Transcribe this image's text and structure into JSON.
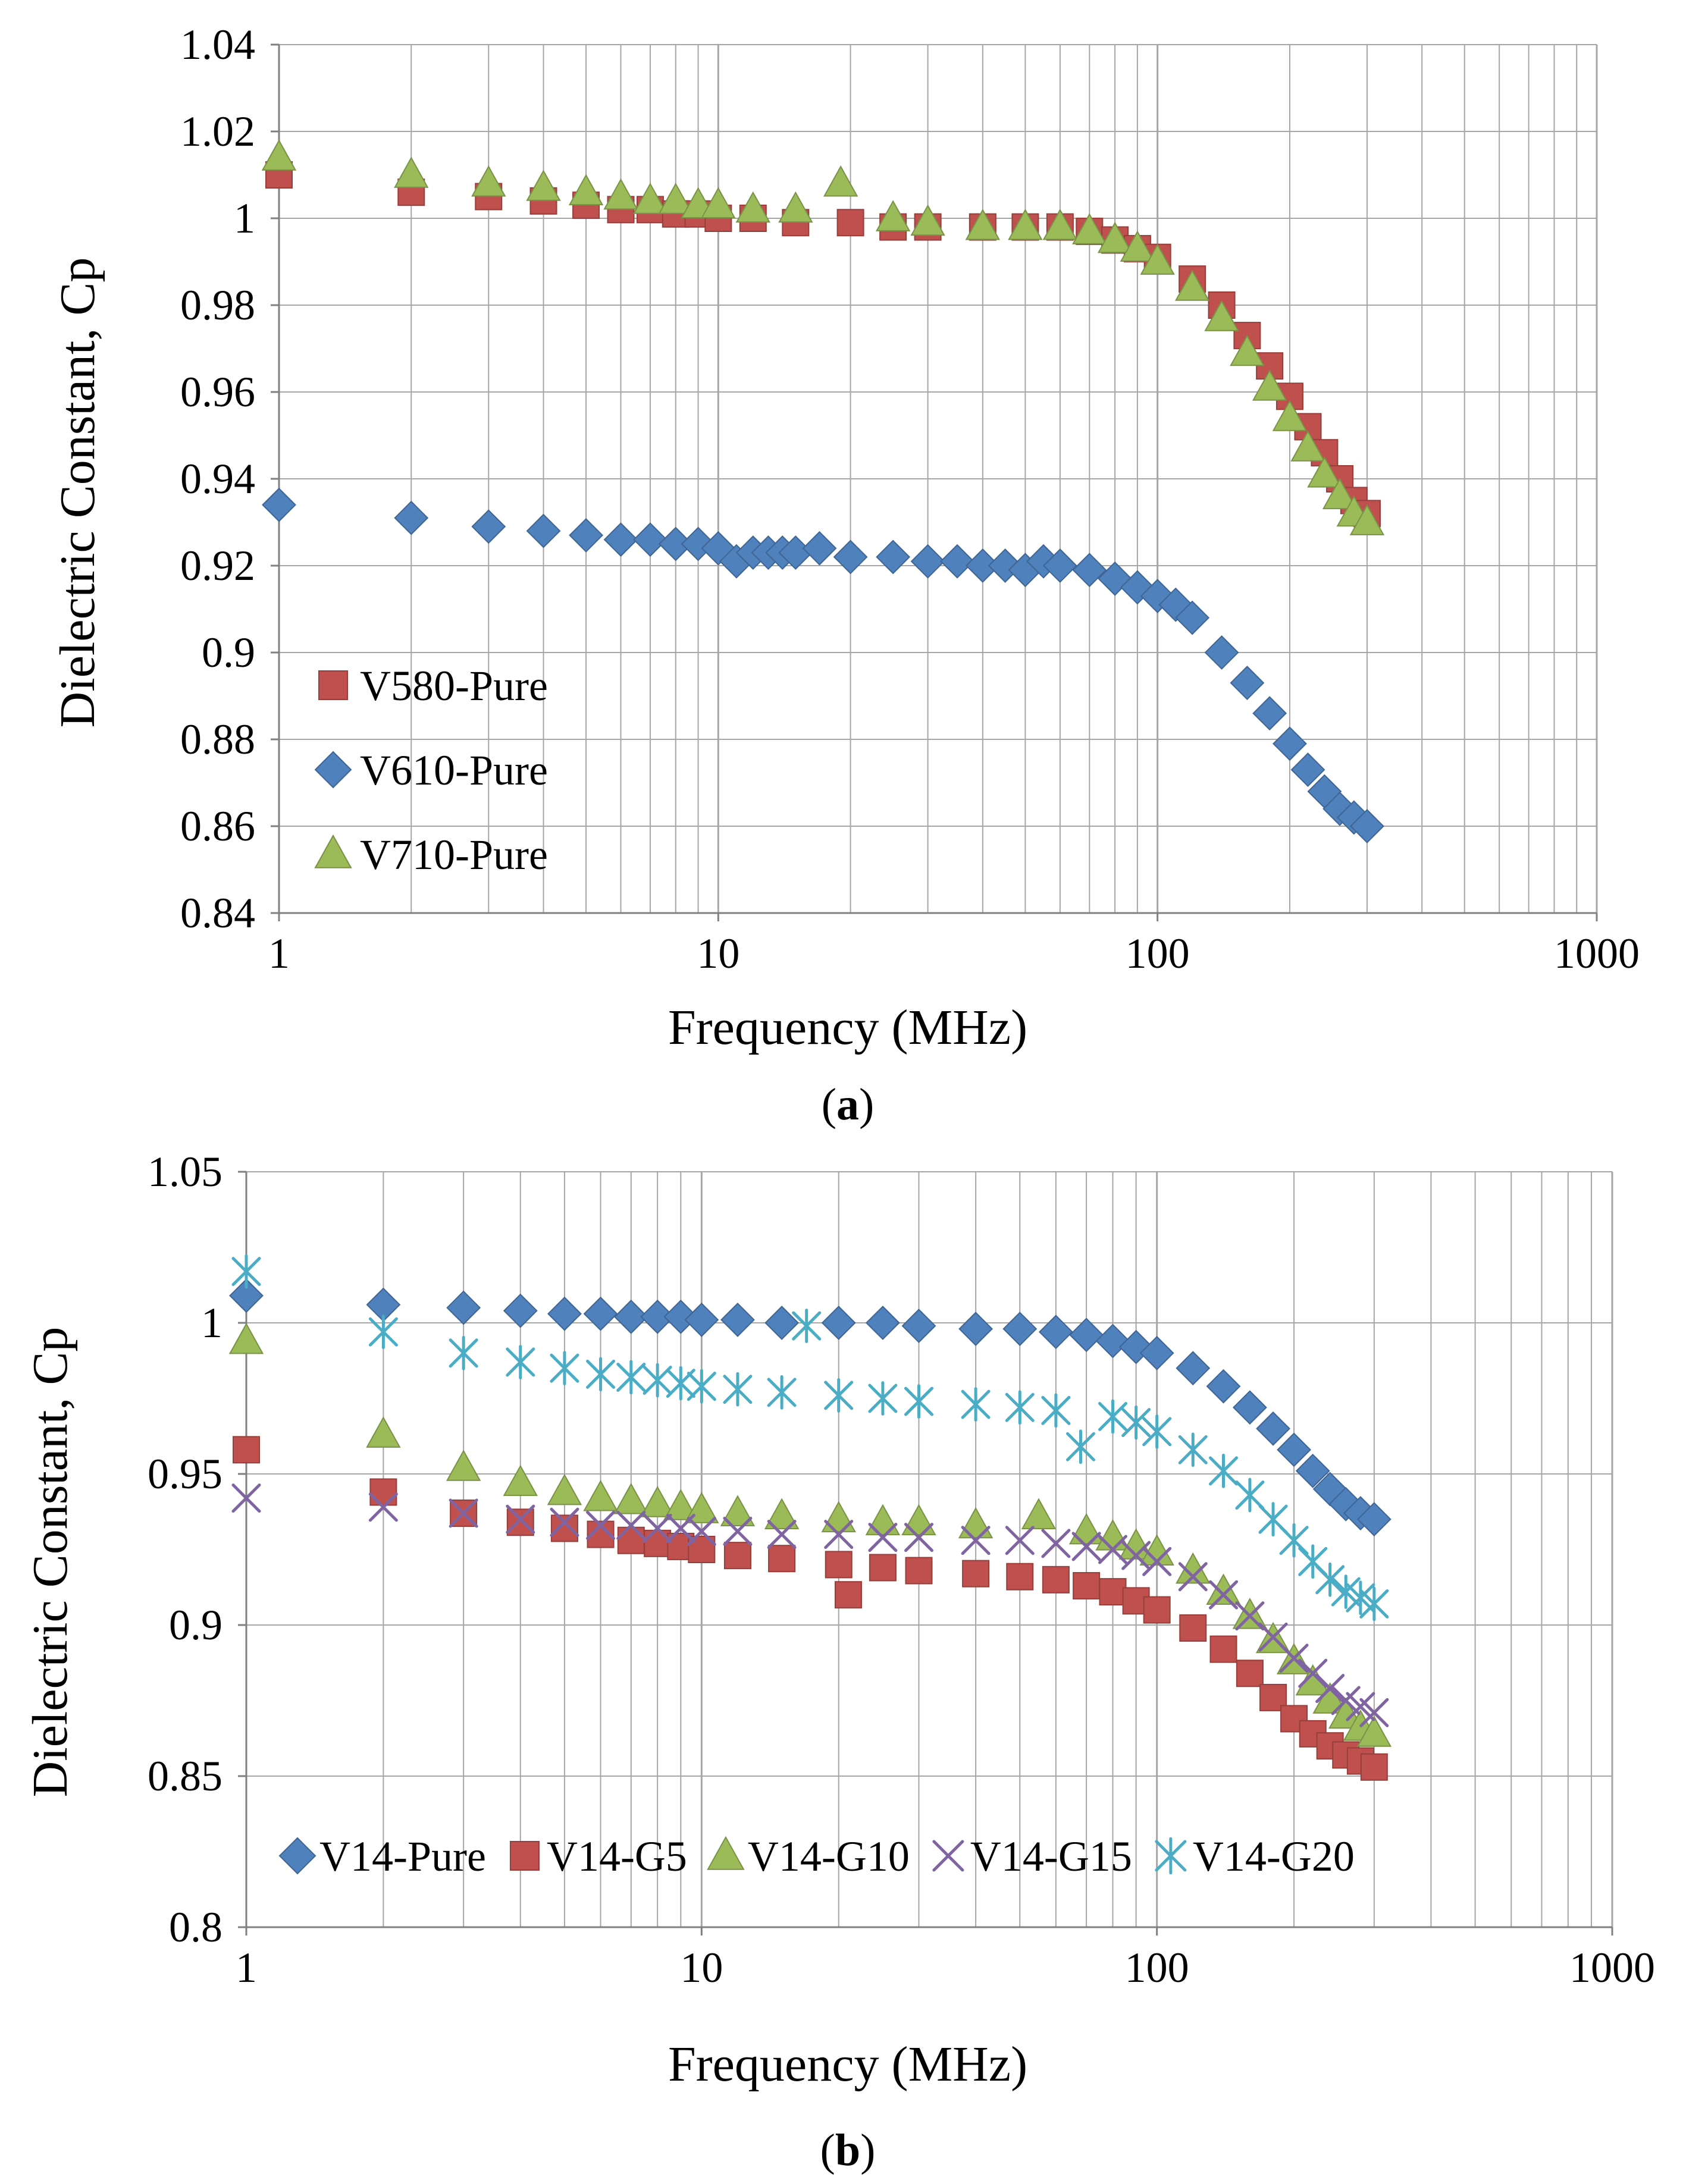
{
  "chart_data": [
    {
      "type": "scatter",
      "panel_label": "(a)",
      "panel_letter": "a",
      "xlabel": "Frequency (MHz)",
      "ylabel": "Dielectric Constant, Cp",
      "xscale": "log",
      "xlim": [
        1,
        1000
      ],
      "ylim": [
        0.84,
        1.04
      ],
      "ystep": 0.02,
      "ydecimals": 2,
      "xticks": [
        "1",
        "10",
        "100",
        "1000"
      ],
      "yticks": [
        "0.84",
        "0.86",
        "0.88",
        "0.9",
        "0.92",
        "0.94",
        "0.96",
        "0.98",
        "1",
        "1.02",
        "1.04"
      ],
      "grid": true,
      "legend": "bottom-left",
      "series": [
        {
          "name": "V580-Pure",
          "marker": "square",
          "color": "#C0504D",
          "x": [
            1,
            2,
            3,
            4,
            5,
            6,
            7,
            8,
            9,
            10,
            12,
            15,
            20,
            25,
            30,
            40,
            50,
            60,
            70,
            80,
            90,
            100,
            120,
            140,
            160,
            180,
            200,
            220,
            240,
            260,
            280,
            300
          ],
          "y": [
            1.01,
            1.006,
            1.005,
            1.004,
            1.003,
            1.002,
            1.002,
            1.001,
            1.001,
            1.0,
            1.0,
            0.999,
            0.999,
            0.998,
            0.998,
            0.998,
            0.998,
            0.998,
            0.997,
            0.995,
            0.993,
            0.991,
            0.986,
            0.98,
            0.973,
            0.966,
            0.959,
            0.952,
            0.946,
            0.94,
            0.935,
            0.932
          ]
        },
        {
          "name": "V610-Pure",
          "marker": "diamond",
          "color": "#4F81BD",
          "x": [
            1,
            2,
            3,
            4,
            5,
            6,
            7,
            8,
            9,
            10,
            11,
            12,
            13,
            14,
            15,
            17,
            20,
            25,
            30,
            35,
            40,
            45,
            50,
            55,
            60,
            70,
            80,
            90,
            100,
            110,
            120,
            140,
            160,
            180,
            200,
            220,
            240,
            260,
            280,
            300
          ],
          "y": [
            0.934,
            0.931,
            0.929,
            0.928,
            0.927,
            0.926,
            0.926,
            0.925,
            0.925,
            0.924,
            0.921,
            0.923,
            0.923,
            0.923,
            0.923,
            0.924,
            0.922,
            0.922,
            0.921,
            0.921,
            0.92,
            0.92,
            0.919,
            0.921,
            0.92,
            0.919,
            0.917,
            0.915,
            0.913,
            0.911,
            0.908,
            0.9,
            0.893,
            0.886,
            0.879,
            0.873,
            0.868,
            0.864,
            0.862,
            0.86
          ]
        },
        {
          "name": "V710-Pure",
          "marker": "triangle",
          "color": "#9BBB59",
          "x": [
            1,
            2,
            3,
            4,
            5,
            6,
            7,
            8,
            9,
            10,
            12,
            15,
            19,
            25,
            30,
            40,
            50,
            60,
            70,
            80,
            90,
            100,
            120,
            140,
            160,
            180,
            200,
            220,
            240,
            260,
            280,
            300
          ],
          "y": [
            1.014,
            1.01,
            1.008,
            1.007,
            1.006,
            1.005,
            1.004,
            1.004,
            1.003,
            1.003,
            1.002,
            1.002,
            1.008,
            1.0,
            0.999,
            0.998,
            0.998,
            0.998,
            0.997,
            0.995,
            0.993,
            0.99,
            0.984,
            0.977,
            0.969,
            0.961,
            0.954,
            0.947,
            0.941,
            0.936,
            0.932,
            0.93
          ]
        }
      ]
    },
    {
      "type": "scatter",
      "panel_label": "(b)",
      "panel_letter": "b",
      "xlabel": "Frequency (MHz)",
      "ylabel": "Dielectric Constant, Cp",
      "xscale": "log",
      "xlim": [
        1,
        1000
      ],
      "ylim": [
        0.8,
        1.05
      ],
      "ystep": 0.05,
      "ydecimals": 2,
      "xticks": [
        "1",
        "10",
        "100",
        "1000"
      ],
      "yticks": [
        "0.8",
        "0.85",
        "0.9",
        "0.95",
        "1",
        "1.05"
      ],
      "grid": true,
      "legend": "bottom",
      "series": [
        {
          "name": "V14-Pure",
          "marker": "diamond",
          "color": "#4F81BD",
          "x": [
            1,
            2,
            3,
            4,
            5,
            6,
            7,
            8,
            9,
            10,
            12,
            15,
            20,
            25,
            30,
            40,
            50,
            60,
            70,
            80,
            90,
            100,
            120,
            140,
            160,
            180,
            200,
            220,
            240,
            260,
            280,
            300
          ],
          "y": [
            1.009,
            1.006,
            1.005,
            1.004,
            1.003,
            1.003,
            1.002,
            1.002,
            1.002,
            1.001,
            1.001,
            1.0,
            1.0,
            1.0,
            0.999,
            0.998,
            0.998,
            0.997,
            0.996,
            0.994,
            0.992,
            0.99,
            0.985,
            0.979,
            0.972,
            0.965,
            0.958,
            0.951,
            0.945,
            0.94,
            0.937,
            0.935
          ]
        },
        {
          "name": "V14-G5",
          "marker": "square",
          "color": "#C0504D",
          "x": [
            1,
            2,
            3,
            4,
            5,
            6,
            7,
            8,
            9,
            10,
            12,
            15,
            20,
            21,
            25,
            30,
            40,
            50,
            60,
            70,
            80,
            90,
            100,
            120,
            140,
            160,
            180,
            200,
            220,
            240,
            260,
            280,
            300
          ],
          "y": [
            0.958,
            0.944,
            0.937,
            0.934,
            0.932,
            0.93,
            0.928,
            0.927,
            0.926,
            0.925,
            0.923,
            0.922,
            0.92,
            0.91,
            0.919,
            0.918,
            0.917,
            0.916,
            0.915,
            0.913,
            0.911,
            0.908,
            0.905,
            0.899,
            0.892,
            0.884,
            0.876,
            0.869,
            0.864,
            0.86,
            0.857,
            0.855,
            0.853
          ]
        },
        {
          "name": "V14-G10",
          "marker": "triangle",
          "color": "#9BBB59",
          "x": [
            1,
            2,
            3,
            4,
            5,
            6,
            7,
            8,
            9,
            10,
            12,
            15,
            20,
            25,
            30,
            40,
            55,
            70,
            80,
            90,
            100,
            120,
            140,
            160,
            180,
            200,
            220,
            240,
            260,
            280,
            300
          ],
          "y": [
            0.994,
            0.963,
            0.952,
            0.947,
            0.944,
            0.942,
            0.941,
            0.94,
            0.939,
            0.938,
            0.937,
            0.936,
            0.935,
            0.934,
            0.934,
            0.933,
            0.936,
            0.931,
            0.929,
            0.926,
            0.924,
            0.918,
            0.911,
            0.903,
            0.895,
            0.888,
            0.881,
            0.875,
            0.87,
            0.866,
            0.864
          ]
        },
        {
          "name": "V14-G15",
          "marker": "x",
          "color": "#8064A2",
          "x": [
            1,
            2,
            3,
            4,
            5,
            6,
            7,
            8,
            9,
            10,
            12,
            15,
            20,
            25,
            30,
            40,
            50,
            60,
            70,
            80,
            90,
            100,
            120,
            140,
            160,
            180,
            200,
            220,
            240,
            260,
            280,
            300
          ],
          "y": [
            0.942,
            0.939,
            0.937,
            0.935,
            0.934,
            0.933,
            0.933,
            0.932,
            0.932,
            0.931,
            0.931,
            0.93,
            0.93,
            0.929,
            0.929,
            0.928,
            0.928,
            0.927,
            0.926,
            0.925,
            0.923,
            0.921,
            0.916,
            0.91,
            0.903,
            0.896,
            0.889,
            0.884,
            0.879,
            0.875,
            0.873,
            0.871
          ]
        },
        {
          "name": "V14-G20",
          "marker": "asterisk",
          "color": "#4BACC6",
          "x": [
            1,
            2,
            3,
            4,
            5,
            6,
            7,
            8,
            9,
            10,
            12,
            15,
            17,
            20,
            25,
            30,
            40,
            50,
            60,
            68,
            80,
            90,
            100,
            120,
            140,
            160,
            180,
            200,
            220,
            240,
            260,
            280,
            300
          ],
          "y": [
            1.017,
            0.997,
            0.99,
            0.987,
            0.985,
            0.983,
            0.982,
            0.981,
            0.98,
            0.979,
            0.978,
            0.977,
            0.999,
            0.976,
            0.975,
            0.974,
            0.973,
            0.972,
            0.971,
            0.959,
            0.969,
            0.967,
            0.964,
            0.958,
            0.951,
            0.943,
            0.935,
            0.928,
            0.921,
            0.915,
            0.911,
            0.909,
            0.907
          ]
        }
      ]
    }
  ]
}
